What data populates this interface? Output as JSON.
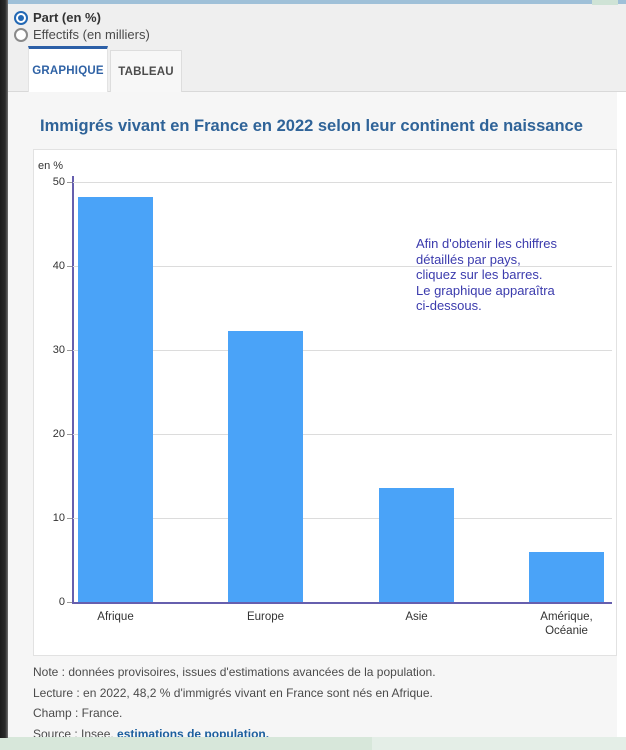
{
  "controls": {
    "options": [
      {
        "label": "Part (en %)",
        "selected": true
      },
      {
        "label": "Effectifs (en milliers)",
        "selected": false
      }
    ]
  },
  "tabs": [
    {
      "label": "GRAPHIQUE",
      "active": true
    },
    {
      "label": "TABLEAU",
      "active": false
    }
  ],
  "chart_data": {
    "type": "bar",
    "title": "Immigrés vivant en France en 2022 selon leur continent de naissance",
    "categories": [
      "Afrique",
      "Europe",
      "Asie",
      "Amérique,\nOcéanie"
    ],
    "values": [
      48.2,
      32.3,
      13.6,
      5.9
    ],
    "xlabel": "",
    "ylabel": "en %",
    "ylim": [
      0,
      50
    ],
    "yticks": [
      0,
      10,
      20,
      30,
      40,
      50
    ],
    "grid": true,
    "legend": "none",
    "bar_color": "#4AA3F8",
    "axis_color": "#665FAE",
    "annotation_color": "#3B3BAD",
    "annotation_lines": [
      "Afin d'obtenir les chiffres",
      "détaillés par pays,",
      "cliquez sur les barres.",
      "Le graphique apparaîtra",
      "ci-dessous."
    ]
  },
  "notes": {
    "note": "Note : données provisoires, issues d'estimations avancées de la population.",
    "lecture": "Lecture : en 2022, 48,2 % d'immigrés vivant en France sont nés en Afrique.",
    "champ": "Champ : France.",
    "source_prefix": "Source : Insee, ",
    "source_link": "estimations de population."
  }
}
